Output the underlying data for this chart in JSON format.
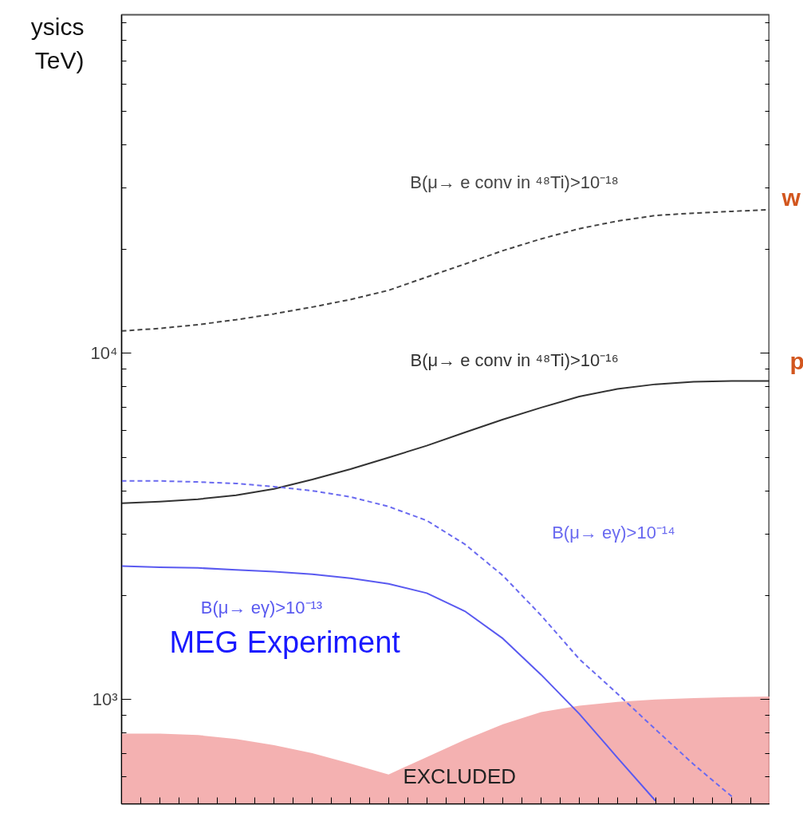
{
  "chart_data": {
    "type": "line",
    "categories": [
      null,
      null,
      null,
      null,
      null,
      null,
      null,
      null,
      null,
      null,
      null,
      null,
      null,
      null,
      null,
      null,
      null,
      null
    ],
    "series": [
      {
        "name": "EXCLUDED",
        "type": "area",
        "color": "#f2a3a3",
        "values": [
          798,
          798,
          790,
          769,
          738,
          700,
          654,
          608,
          682,
          765,
          849,
          920,
          960,
          985,
          1000,
          1010,
          1016,
          1021
        ]
      },
      {
        "name": "B(μ→ e conv in ⁴⁸Ti)>10⁻¹⁸",
        "color": "#444444",
        "line_style": "dashed",
        "values": [
          11600,
          11800,
          12100,
          12500,
          13000,
          13600,
          14300,
          15200,
          16600,
          18100,
          19800,
          21400,
          22900,
          24100,
          25000,
          25400,
          25700,
          26000
        ]
      },
      {
        "name": "B(μ→ e conv in ⁴⁸Ti)>10⁻¹⁶",
        "color": "#333333",
        "line_style": "solid",
        "values": [
          3690,
          3730,
          3790,
          3890,
          4060,
          4320,
          4630,
          5000,
          5410,
          5910,
          6440,
          6970,
          7500,
          7890,
          8140,
          8280,
          8320,
          8320
        ]
      },
      {
        "name": "B(μ→ eγ)>10⁻¹⁴",
        "color": "#6a6af0",
        "line_style": "dashed",
        "values": [
          4280,
          4280,
          4250,
          4210,
          4120,
          4010,
          3850,
          3610,
          3290,
          2810,
          2280,
          1750,
          1310,
          1040,
          820,
          650,
          525,
          null
        ]
      },
      {
        "name": "B(μ→ eγ)>10⁻¹³",
        "color": "#5a5af0",
        "line_style": "solid",
        "values": [
          2430,
          2410,
          2400,
          2370,
          2340,
          2300,
          2240,
          2160,
          2030,
          1800,
          1500,
          1180,
          910,
          680,
          510,
          null,
          null,
          null
        ]
      }
    ],
    "ylim": [
      500,
      95000
    ],
    "yticks": [
      {
        "value": 1000,
        "label": "10³"
      },
      {
        "value": 10000,
        "label": "10⁴"
      }
    ],
    "log": "y",
    "grid": false,
    "legend": false,
    "tick_labels": "y",
    "marker": "none",
    "annotations": [
      "MEG Experiment",
      "ysics",
      "TeV)",
      "w",
      "p"
    ]
  }
}
